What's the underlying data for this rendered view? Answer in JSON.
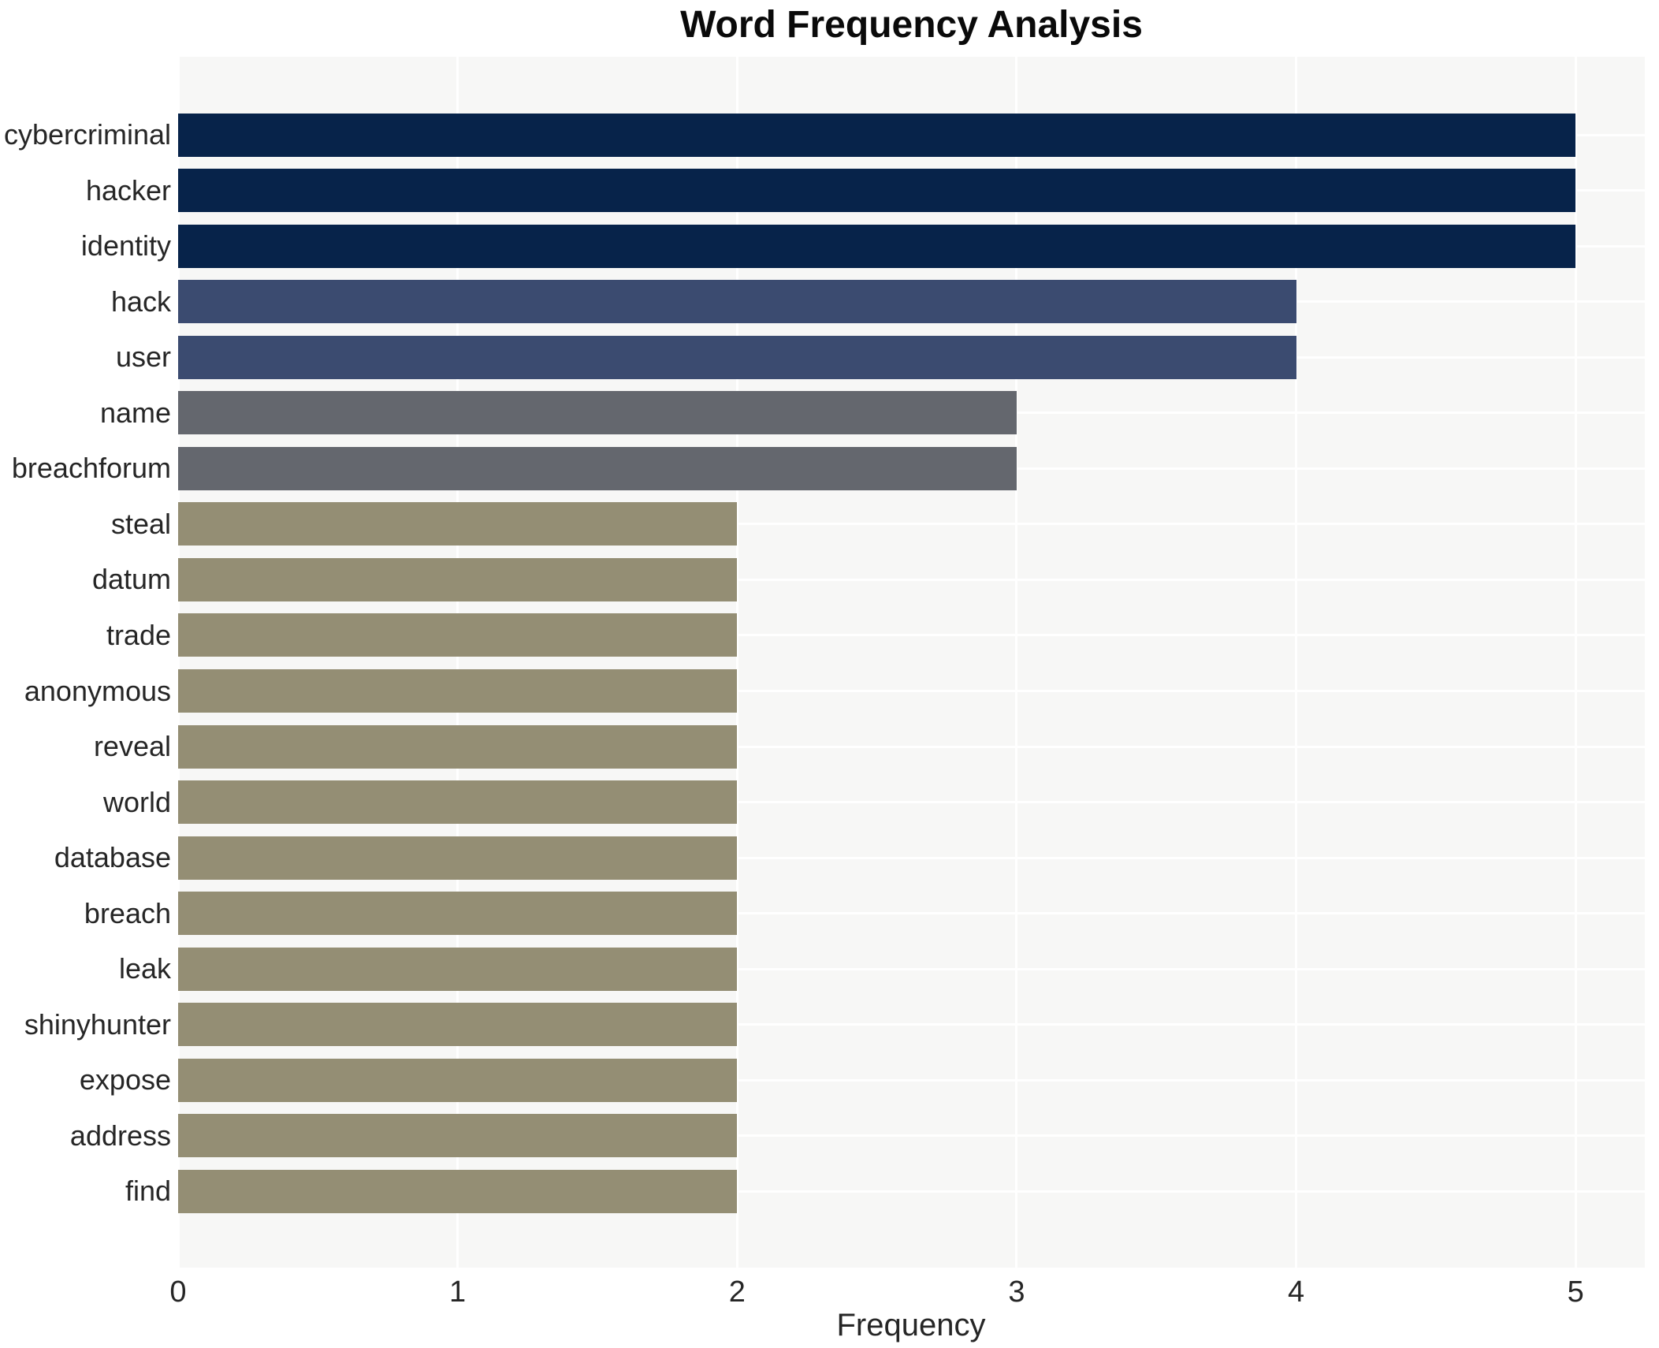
{
  "title": "Word Frequency Analysis",
  "x_axis": {
    "label": "Frequency",
    "tick_labels": [
      "0",
      "1",
      "2",
      "3",
      "4",
      "5"
    ]
  },
  "chart_data": {
    "type": "bar",
    "orientation": "horizontal",
    "title": "Word Frequency Analysis",
    "xlabel": "Frequency",
    "ylabel": "",
    "categories": [
      "cybercriminal",
      "hacker",
      "identity",
      "hack",
      "user",
      "name",
      "breachforum",
      "steal",
      "datum",
      "trade",
      "anonymous",
      "reveal",
      "world",
      "database",
      "breach",
      "leak",
      "shinyhunter",
      "expose",
      "address",
      "find"
    ],
    "values": [
      5,
      5,
      5,
      4,
      4,
      3,
      3,
      2,
      2,
      2,
      2,
      2,
      2,
      2,
      2,
      2,
      2,
      2,
      2,
      2
    ],
    "xlim": [
      0,
      5
    ],
    "xticks": [
      0,
      1,
      2,
      3,
      4,
      5
    ],
    "grid": true,
    "legend_position": "none",
    "colors": {
      "plot_background": "#f7f7f6",
      "page_background": "#ffffff",
      "gridline": "#ffffff",
      "text": "#262626",
      "title_text": "#0a0a0a",
      "value_5_bar": "#07234a",
      "value_4_bar": "#3b4b70",
      "value_3_bar": "#64676e",
      "value_2_bar": "#948e74"
    }
  }
}
